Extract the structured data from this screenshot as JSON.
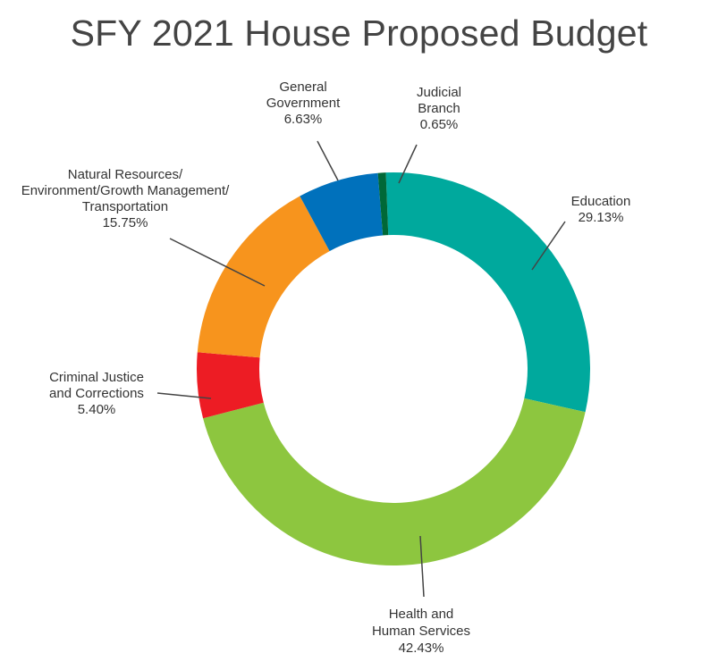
{
  "title": "SFY 2021 House Proposed Budget",
  "chart_data": {
    "type": "pie",
    "donut": true,
    "title": "SFY 2021 House Proposed Budget",
    "unit": "%",
    "slices": [
      {
        "name_lines": [
          "Education"
        ],
        "value": 29.13,
        "value_label": "29.13%",
        "color": "#00a99d"
      },
      {
        "name_lines": [
          "Health and",
          "Human Services"
        ],
        "value": 42.43,
        "value_label": "42.43%",
        "color": "#8dc63f"
      },
      {
        "name_lines": [
          "Criminal Justice",
          "and Corrections"
        ],
        "value": 5.4,
        "value_label": "5.40%",
        "color": "#ed1c24"
      },
      {
        "name_lines": [
          "Natural Resources/",
          "Environment/Growth Management/",
          "Transportation"
        ],
        "value": 15.75,
        "value_label": "15.75%",
        "color": "#f7941d"
      },
      {
        "name_lines": [
          "General",
          "Government"
        ],
        "value": 6.63,
        "value_label": "6.63%",
        "color": "#0071bc"
      },
      {
        "name_lines": [
          "Judicial",
          "Branch"
        ],
        "value": 0.65,
        "value_label": "0.65%",
        "color": "#006837"
      }
    ]
  }
}
